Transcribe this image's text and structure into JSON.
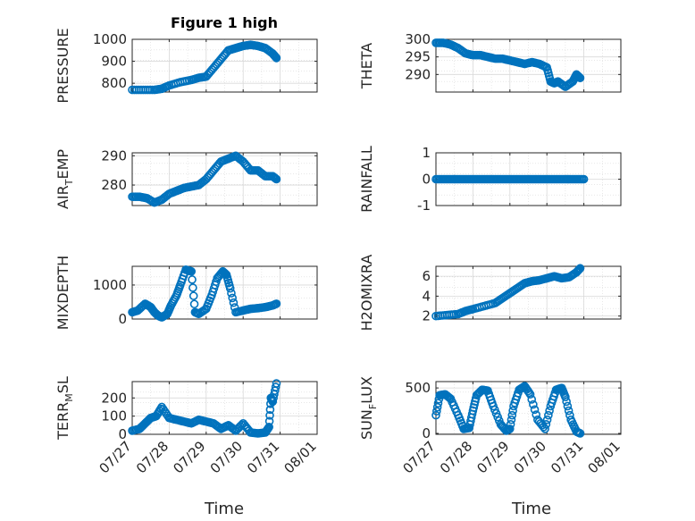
{
  "figure": {
    "title": "Figure 1 high",
    "xlabel": "Time"
  },
  "colors": {
    "marker": "#0072BD",
    "axis": "#262626",
    "grid": "#d9d9d9"
  },
  "chart_data": [
    {
      "type": "scatter",
      "ylabel": "PRESSURE",
      "ylabel_html": "PRESSURE",
      "ylim": [
        760,
        1000
      ],
      "yticks": [
        800,
        900,
        1000
      ],
      "xlim": [
        0,
        5
      ],
      "xticks": [
        0,
        1,
        2,
        3,
        4,
        5
      ],
      "xticklabels": [
        "07/27",
        "07/28",
        "07/29",
        "07/30",
        "07/31",
        "08/01"
      ],
      "x": [
        0,
        0.3,
        0.6,
        0.8,
        1,
        1.3,
        1.6,
        1.8,
        2,
        2.2,
        2.4,
        2.6,
        2.8,
        3,
        3.2,
        3.4,
        3.6,
        3.8,
        3.9
      ],
      "y": [
        770,
        770,
        770,
        775,
        790,
        805,
        815,
        825,
        830,
        870,
        910,
        950,
        960,
        970,
        975,
        970,
        960,
        935,
        915
      ],
      "title": "Figure 1 high"
    },
    {
      "type": "scatter",
      "ylabel": "THETA",
      "ylim": [
        285,
        300
      ],
      "yticks": [
        290,
        295,
        300
      ],
      "xlim": [
        0,
        5
      ],
      "xticks": [
        0,
        1,
        2,
        3,
        4,
        5
      ],
      "xticklabels": [
        "07/27",
        "07/28",
        "07/29",
        "07/30",
        "07/31",
        "08/01"
      ],
      "x": [
        0,
        0.2,
        0.4,
        0.6,
        0.8,
        1,
        1.2,
        1.4,
        1.6,
        1.8,
        2,
        2.2,
        2.4,
        2.6,
        2.8,
        3,
        3.1,
        3.2,
        3.3,
        3.5,
        3.7,
        3.8,
        3.9
      ],
      "y": [
        299,
        299,
        298.5,
        297.5,
        296,
        295.5,
        295.5,
        295,
        294.5,
        294.5,
        294,
        293.5,
        293,
        293.5,
        293,
        292,
        288,
        287.5,
        288,
        286.5,
        288,
        290,
        289
      ]
    },
    {
      "type": "scatter",
      "ylabel": "AIR",
      "ylabel_sub": "T",
      "ylabel_tail": "EMP",
      "ylim": [
        273,
        291
      ],
      "yticks": [
        280,
        290
      ],
      "xlim": [
        0,
        5
      ],
      "xticks": [
        0,
        1,
        2,
        3,
        4,
        5
      ],
      "xticklabels": [
        "07/27",
        "07/28",
        "07/29",
        "07/30",
        "07/31",
        "08/01"
      ],
      "x": [
        0,
        0.2,
        0.4,
        0.6,
        0.8,
        1,
        1.2,
        1.4,
        1.6,
        1.8,
        2,
        2.2,
        2.4,
        2.6,
        2.8,
        3,
        3.2,
        3.4,
        3.6,
        3.8,
        3.9
      ],
      "y": [
        276,
        276,
        275.5,
        274,
        275,
        277,
        278,
        279,
        279.5,
        280,
        282,
        285,
        288,
        289,
        290,
        288,
        285,
        285,
        283,
        283,
        282
      ]
    },
    {
      "type": "scatter",
      "ylabel": "RAINFALL",
      "ylim": [
        -1,
        1
      ],
      "yticks": [
        -1,
        0,
        1
      ],
      "xlim": [
        0,
        5
      ],
      "xticks": [
        0,
        1,
        2,
        3,
        4,
        5
      ],
      "xticklabels": [
        "07/27",
        "07/28",
        "07/29",
        "07/30",
        "07/31",
        "08/01"
      ],
      "x": [
        0,
        0.2,
        0.4,
        0.6,
        0.8,
        1,
        1.2,
        1.4,
        1.6,
        1.8,
        2,
        2.2,
        2.4,
        2.6,
        2.8,
        3,
        3.2,
        3.4,
        3.6,
        3.8,
        4
      ],
      "y": [
        0,
        0,
        0,
        0,
        0,
        0,
        0,
        0,
        0,
        0,
        0,
        0,
        0,
        0,
        0,
        0,
        0,
        0,
        0,
        0,
        0
      ]
    },
    {
      "type": "scatter",
      "ylabel": "MIXDEPTH",
      "ylim": [
        0,
        1550
      ],
      "yticks": [
        0,
        1000
      ],
      "xlim": [
        0,
        5
      ],
      "xticks": [
        0,
        1,
        2,
        3,
        4,
        5
      ],
      "xticklabels": [
        "07/27",
        "07/28",
        "07/29",
        "07/30",
        "07/31",
        "08/01"
      ],
      "x": [
        0,
        0.15,
        0.35,
        0.5,
        0.6,
        0.7,
        0.8,
        0.95,
        1.05,
        1.2,
        1.3,
        1.45,
        1.6,
        1.7,
        1.8,
        2,
        2.15,
        2.3,
        2.45,
        2.55,
        2.65,
        2.8,
        3,
        3.2,
        3.4,
        3.6,
        3.8,
        3.9
      ],
      "y": [
        200,
        250,
        450,
        350,
        200,
        100,
        50,
        150,
        400,
        700,
        1000,
        1450,
        1400,
        200,
        150,
        300,
        700,
        1200,
        1400,
        1300,
        900,
        200,
        250,
        300,
        320,
        350,
        400,
        450
      ]
    },
    {
      "type": "scatter",
      "ylabel": "H2OMIXRA",
      "ylim": [
        1.7,
        7
      ],
      "yticks": [
        2,
        4,
        6
      ],
      "xlim": [
        0,
        5
      ],
      "xticks": [
        0,
        1,
        2,
        3,
        4,
        5
      ],
      "xticklabels": [
        "07/27",
        "07/28",
        "07/29",
        "07/30",
        "07/31",
        "08/01"
      ],
      "x": [
        0,
        0.3,
        0.6,
        0.8,
        1,
        1.3,
        1.6,
        1.8,
        2,
        2.2,
        2.4,
        2.6,
        2.8,
        3,
        3.2,
        3.4,
        3.6,
        3.8,
        3.9
      ],
      "y": [
        2,
        2.1,
        2.2,
        2.5,
        2.7,
        3,
        3.3,
        3.8,
        4.3,
        4.8,
        5.3,
        5.5,
        5.6,
        5.8,
        6,
        5.8,
        5.9,
        6.4,
        6.8
      ]
    },
    {
      "type": "scatter",
      "ylabel": "TERR",
      "ylabel_sub": "M",
      "ylabel_tail": "SL",
      "ylim": [
        0,
        290
      ],
      "yticks": [
        0,
        100,
        200
      ],
      "xlim": [
        0,
        5
      ],
      "xticks": [
        0,
        1,
        2,
        3,
        4,
        5
      ],
      "xticklabels": [
        "07/27",
        "07/28",
        "07/29",
        "07/30",
        "07/31",
        "08/01"
      ],
      "x": [
        0,
        0.2,
        0.35,
        0.5,
        0.65,
        0.8,
        1,
        1.2,
        1.4,
        1.6,
        1.8,
        2,
        2.2,
        2.4,
        2.6,
        2.8,
        3,
        3.2,
        3.4,
        3.6,
        3.7,
        3.75,
        3.8,
        3.9
      ],
      "y": [
        20,
        30,
        60,
        90,
        100,
        150,
        90,
        80,
        70,
        60,
        80,
        70,
        60,
        30,
        50,
        20,
        60,
        10,
        5,
        10,
        40,
        200,
        180,
        280
      ]
    },
    {
      "type": "scatter",
      "ylabel": "SUN",
      "ylabel_sub": "F",
      "ylabel_tail": "LUX",
      "ylim": [
        -10,
        570
      ],
      "yticks": [
        0,
        500
      ],
      "xlim": [
        0,
        5
      ],
      "xticks": [
        0,
        1,
        2,
        3,
        4,
        5
      ],
      "xticklabels": [
        "07/27",
        "07/28",
        "07/29",
        "07/30",
        "07/31",
        "08/01"
      ],
      "x": [
        0,
        0.1,
        0.25,
        0.4,
        0.6,
        0.75,
        0.9,
        1,
        1.1,
        1.25,
        1.4,
        1.55,
        1.75,
        1.9,
        2,
        2.1,
        2.25,
        2.4,
        2.55,
        2.75,
        2.95,
        3.1,
        3.25,
        3.4,
        3.5,
        3.65,
        3.8,
        3.9
      ],
      "y": [
        200,
        420,
        430,
        380,
        200,
        50,
        60,
        250,
        420,
        480,
        470,
        300,
        100,
        30,
        50,
        300,
        480,
        520,
        430,
        150,
        50,
        300,
        480,
        500,
        400,
        150,
        20,
        0
      ]
    }
  ]
}
